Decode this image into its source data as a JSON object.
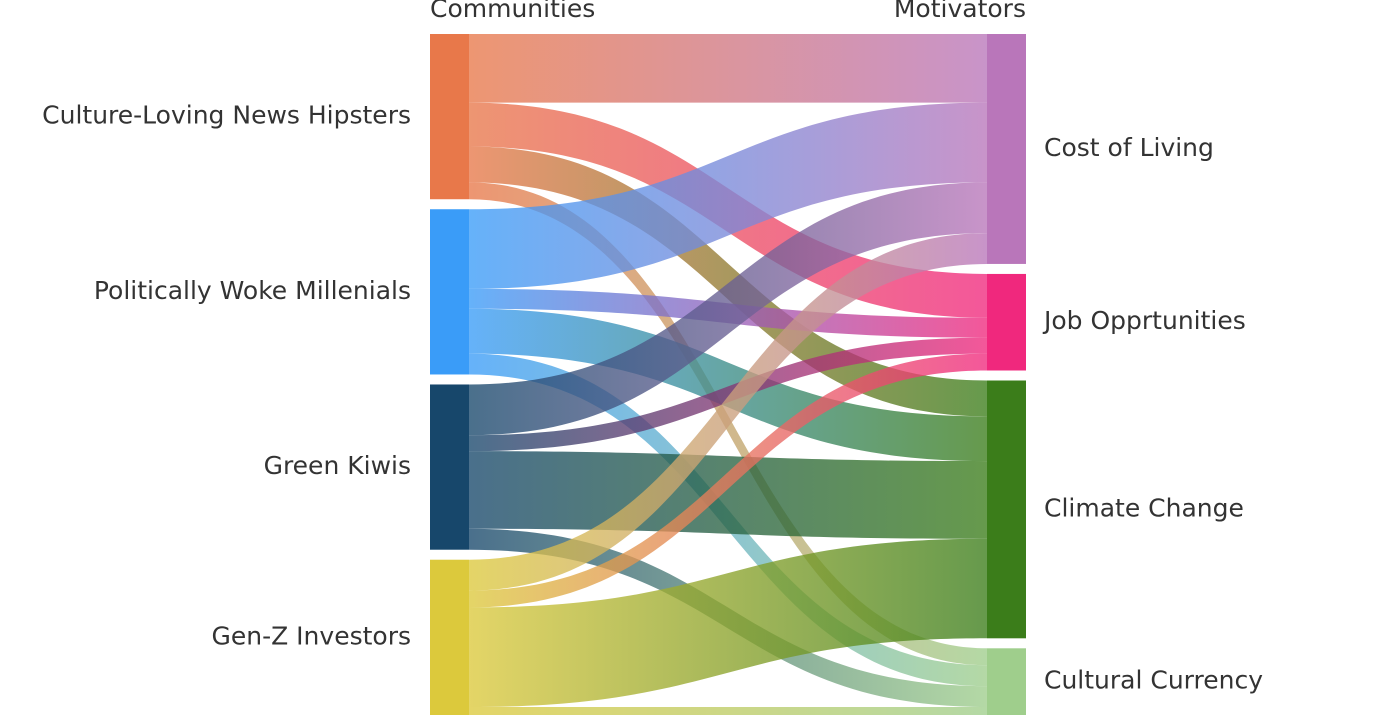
{
  "chart_data": {
    "type": "sankey",
    "source_title": "Communities",
    "target_title": "Motivators",
    "sources": [
      "Culture-Loving News Hipsters",
      "Politically Woke Millenials",
      "Green Kiwis",
      "Gen-Z Investors"
    ],
    "targets": [
      "Cost of Living",
      "Job Opprtunities",
      "Climate Change",
      "Cultural Currency"
    ],
    "source_colors": [
      "#e8784a",
      "#3a9cf8",
      "#17476b",
      "#dcc93c"
    ],
    "target_colors": [
      "#b976ba",
      "#f0287d",
      "#3b7d1a",
      "#9fce8c"
    ],
    "values": [
      [
        69,
        44,
        36,
        17
      ],
      [
        80,
        20,
        45,
        21
      ],
      [
        51,
        16,
        78,
        21
      ],
      [
        31,
        17,
        100,
        8
      ]
    ]
  }
}
